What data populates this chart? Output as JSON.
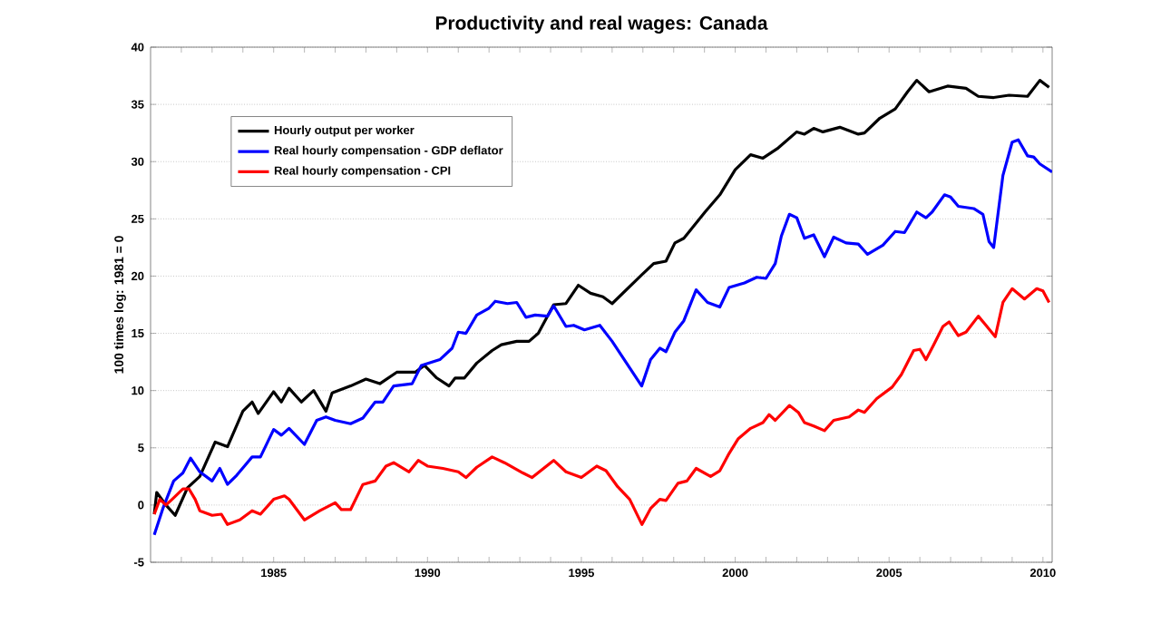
{
  "chart_data": {
    "type": "line",
    "title": "Productivity and real wages: Canada",
    "ylabel": "100 times log: 1981 = 0",
    "xlim": [
      1981,
      2010.3
    ],
    "ylim": [
      -5,
      40
    ],
    "yticks": [
      -5,
      0,
      5,
      10,
      15,
      20,
      25,
      30,
      35,
      40
    ],
    "xticks": [
      {
        "value": 1982,
        "label": null
      },
      {
        "value": 1983,
        "label": null
      },
      {
        "value": 1984,
        "label": null
      },
      1985,
      {
        "value": 1986,
        "label": null
      },
      {
        "value": 1987,
        "label": null
      },
      {
        "value": 1988,
        "label": null
      },
      {
        "value": 1989,
        "label": null
      },
      1990,
      {
        "value": 1991,
        "label": null
      },
      {
        "value": 1992,
        "label": null
      },
      {
        "value": 1993,
        "label": null
      },
      {
        "value": 1994,
        "label": null
      },
      1995,
      {
        "value": 1996,
        "label": null
      },
      {
        "value": 1997,
        "label": null
      },
      {
        "value": 1998,
        "label": null
      },
      {
        "value": 1999,
        "label": null
      },
      2000,
      {
        "value": 2001,
        "label": null
      },
      {
        "value": 2002,
        "label": null
      },
      {
        "value": 2003,
        "label": null
      },
      {
        "value": 2004,
        "label": null
      },
      2005,
      {
        "value": 2006,
        "label": null
      },
      {
        "value": 2007,
        "label": null
      },
      {
        "value": 2008,
        "label": null
      },
      {
        "value": 2009,
        "label": null
      },
      2010
    ],
    "grid": "y",
    "legend": "top left",
    "line_style": "solid",
    "marker": "none",
    "series": [
      {
        "name": "Hourly output per worker",
        "color": "#000000",
        "x": [
          1981.12,
          1981.2,
          1981.5,
          1981.8,
          1982.2,
          1982.6,
          1983.1,
          1983.5,
          1984.0,
          1984.3,
          1984.5,
          1985.0,
          1985.25,
          1985.5,
          1985.9,
          1986.3,
          1986.7,
          1986.9,
          1987.5,
          1988.0,
          1988.45,
          1989.0,
          1989.6,
          1989.9,
          1990.3,
          1990.7,
          1990.9,
          1991.2,
          1991.6,
          1992.1,
          1992.4,
          1992.9,
          1993.3,
          1993.6,
          1994.1,
          1994.5,
          1994.9,
          1995.3,
          1995.7,
          1996.0,
          1996.96,
          1997.35,
          1997.75,
          1998.04,
          1998.33,
          1999.02,
          1999.5,
          2000.0,
          2000.5,
          2000.9,
          2001.4,
          2002.0,
          2002.25,
          2002.55,
          2002.85,
          2003.4,
          2004.0,
          2004.2,
          2004.7,
          2005.2,
          2005.6,
          2005.9,
          2006.3,
          2006.9,
          2007.5,
          2007.9,
          2008.4,
          2008.9,
          2009.5,
          2009.9,
          2010.2
        ],
        "values": [
          -0.8,
          1.1,
          0.0,
          -0.9,
          1.5,
          2.5,
          5.5,
          5.1,
          8.2,
          9.0,
          8.0,
          9.9,
          9.0,
          10.2,
          9.0,
          10.0,
          8.2,
          9.8,
          10.4,
          11.0,
          10.6,
          11.6,
          11.6,
          12.2,
          11.1,
          10.4,
          11.1,
          11.1,
          12.4,
          13.5,
          14.0,
          14.3,
          14.3,
          15.0,
          17.5,
          17.6,
          19.2,
          18.5,
          18.2,
          17.6,
          20.1,
          21.1,
          21.3,
          22.9,
          23.3,
          25.6,
          27.1,
          29.3,
          30.6,
          30.3,
          31.2,
          32.6,
          32.4,
          32.9,
          32.6,
          33.0,
          32.4,
          32.5,
          33.8,
          34.6,
          36.1,
          37.1,
          36.1,
          36.6,
          36.4,
          35.7,
          35.6,
          35.8,
          35.7,
          37.1,
          36.5
        ]
      },
      {
        "name": "Real hourly compensation - GDP deflator",
        "color": "#0000ff",
        "x": [
          1981.12,
          1981.4,
          1981.75,
          1982.05,
          1982.3,
          1982.6,
          1983.0,
          1983.25,
          1983.5,
          1983.8,
          1984.3,
          1984.57,
          1985.0,
          1985.25,
          1985.5,
          1986.0,
          1986.4,
          1986.7,
          1987.0,
          1987.5,
          1987.9,
          1988.3,
          1988.55,
          1988.9,
          1989.5,
          1989.8,
          1990.4,
          1990.8,
          1991.0,
          1991.25,
          1991.6,
          1992.0,
          1992.2,
          1992.6,
          1992.9,
          1993.2,
          1993.5,
          1993.9,
          1994.1,
          1994.5,
          1994.75,
          1995.1,
          1995.6,
          1996.0,
          1996.96,
          1997.25,
          1997.55,
          1997.75,
          1998.04,
          1998.33,
          1998.73,
          1999.1,
          1999.5,
          1999.8,
          2000.3,
          2000.7,
          2001.0,
          2001.3,
          2001.5,
          2001.76,
          2002.0,
          2002.25,
          2002.55,
          2002.9,
          2003.2,
          2003.6,
          2004.0,
          2004.3,
          2004.8,
          2005.2,
          2005.5,
          2005.9,
          2006.2,
          2006.4,
          2006.8,
          2007.0,
          2007.25,
          2007.75,
          2008.05,
          2008.25,
          2008.4,
          2008.7,
          2009.0,
          2009.2,
          2009.5,
          2009.7,
          2009.9,
          2010.3
        ],
        "values": [
          -2.6,
          -0.3,
          2.1,
          2.8,
          4.1,
          2.9,
          2.1,
          3.2,
          1.8,
          2.6,
          4.2,
          4.2,
          6.6,
          6.1,
          6.7,
          5.3,
          7.4,
          7.7,
          7.4,
          7.1,
          7.6,
          9.0,
          9.0,
          10.4,
          10.6,
          12.2,
          12.7,
          13.7,
          15.1,
          15.0,
          16.6,
          17.2,
          17.8,
          17.6,
          17.7,
          16.4,
          16.6,
          16.5,
          17.4,
          15.6,
          15.7,
          15.3,
          15.7,
          14.3,
          10.4,
          12.7,
          13.7,
          13.4,
          15.1,
          16.1,
          18.8,
          17.7,
          17.3,
          19.0,
          19.4,
          19.9,
          19.8,
          21.1,
          23.5,
          25.4,
          25.1,
          23.3,
          23.6,
          21.7,
          23.4,
          22.9,
          22.8,
          21.9,
          22.7,
          23.9,
          23.8,
          25.6,
          25.1,
          25.6,
          27.1,
          26.9,
          26.1,
          25.9,
          25.4,
          23.0,
          22.5,
          28.8,
          31.7,
          31.9,
          30.5,
          30.4,
          29.8,
          29.1
        ]
      },
      {
        "name": "Real hourly compensation - CPI",
        "color": "#ff0000",
        "x": [
          1981.12,
          1981.3,
          1981.5,
          1981.7,
          1982.05,
          1982.25,
          1982.45,
          1982.6,
          1983.0,
          1983.3,
          1983.5,
          1983.9,
          1984.3,
          1984.57,
          1985.0,
          1985.35,
          1985.5,
          1986.0,
          1986.5,
          1987.0,
          1987.2,
          1987.5,
          1987.9,
          1988.3,
          1988.65,
          1988.9,
          1989.4,
          1989.7,
          1990.0,
          1990.5,
          1991.0,
          1991.25,
          1991.6,
          1992.1,
          1992.5,
          1993.1,
          1993.4,
          1994.1,
          1994.5,
          1995.0,
          1995.5,
          1995.8,
          1996.18,
          1996.57,
          1996.97,
          1997.25,
          1997.55,
          1997.75,
          1998.14,
          1998.43,
          1998.73,
          1999.2,
          1999.5,
          1999.8,
          2000.1,
          2000.5,
          2000.9,
          2001.1,
          2001.3,
          2001.76,
          2002.05,
          2002.25,
          2002.55,
          2002.9,
          2003.2,
          2003.7,
          2004.0,
          2004.2,
          2004.6,
          2005.1,
          2005.4,
          2005.8,
          2006.0,
          2006.2,
          2006.45,
          2006.75,
          2006.95,
          2007.25,
          2007.5,
          2007.9,
          2008.15,
          2008.45,
          2008.7,
          2009.0,
          2009.4,
          2009.8,
          2010.0,
          2010.2
        ],
        "values": [
          -0.8,
          0.5,
          0.0,
          0.5,
          1.4,
          1.4,
          0.5,
          -0.5,
          -0.9,
          -0.8,
          -1.7,
          -1.3,
          -0.5,
          -0.8,
          0.5,
          0.8,
          0.5,
          -1.3,
          -0.5,
          0.2,
          -0.4,
          -0.4,
          1.8,
          2.1,
          3.4,
          3.7,
          2.9,
          3.9,
          3.4,
          3.2,
          2.9,
          2.4,
          3.3,
          4.2,
          3.7,
          2.8,
          2.4,
          3.9,
          2.9,
          2.4,
          3.4,
          3.0,
          1.6,
          0.5,
          -1.7,
          -0.3,
          0.5,
          0.4,
          1.9,
          2.1,
          3.2,
          2.5,
          3.0,
          4.5,
          5.8,
          6.7,
          7.2,
          7.9,
          7.4,
          8.7,
          8.1,
          7.2,
          6.9,
          6.5,
          7.4,
          7.7,
          8.3,
          8.1,
          9.3,
          10.3,
          11.4,
          13.5,
          13.6,
          12.7,
          14.0,
          15.6,
          16.0,
          14.8,
          15.1,
          16.5,
          15.7,
          14.7,
          17.7,
          18.9,
          18.0,
          18.9,
          18.7,
          17.7
        ]
      }
    ]
  }
}
